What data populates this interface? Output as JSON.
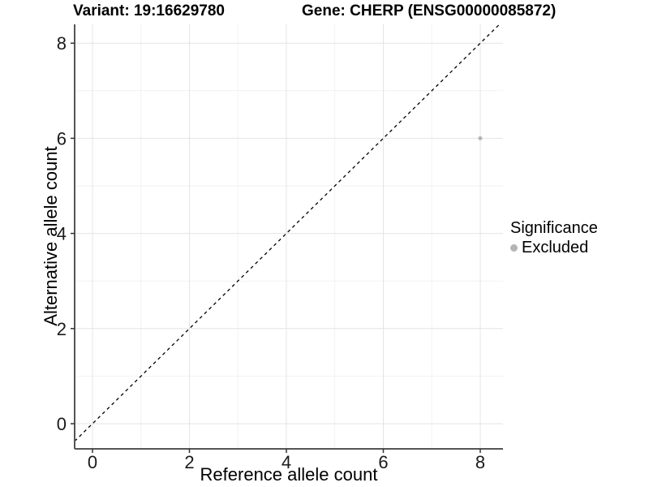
{
  "titles": {
    "variant": "Variant: 19:16629780",
    "gene": "Gene: CHERP (ENSG00000085872)"
  },
  "chart_data": {
    "type": "scatter",
    "title_left": "Variant: 19:16629780",
    "title_right": "Gene: CHERP (ENSG00000085872)",
    "xlabel": "Reference allele count",
    "ylabel": "Alternative allele count",
    "x_ticks": [
      0,
      2,
      4,
      6,
      8
    ],
    "y_ticks": [
      0,
      2,
      4,
      6,
      8
    ],
    "x_minor": [
      1,
      3,
      5,
      7
    ],
    "y_minor": [
      1,
      3,
      5,
      7
    ],
    "xlim": [
      -0.37,
      8.47
    ],
    "ylim": [
      -0.4,
      8.4
    ],
    "grid": true,
    "reference_line": {
      "type": "identity",
      "equation": "y = x",
      "style": "dashed"
    },
    "series": [
      {
        "name": "Excluded",
        "color": "#b5b5b5",
        "points": [
          {
            "x": 8,
            "y": 6
          }
        ]
      }
    ],
    "legend": {
      "title": "Significance",
      "position": "right",
      "entries": [
        {
          "label": "Excluded",
          "color": "#b5b5b5"
        }
      ]
    }
  },
  "colors": {
    "background": "#ffffff",
    "point": "#b5b5b5",
    "grid_major": "#e4e4e4",
    "grid_minor": "#f2f2f2",
    "axis_line": "#555555",
    "tick_mark": "#333333",
    "reference_line": "#000000",
    "text": "#000000"
  }
}
